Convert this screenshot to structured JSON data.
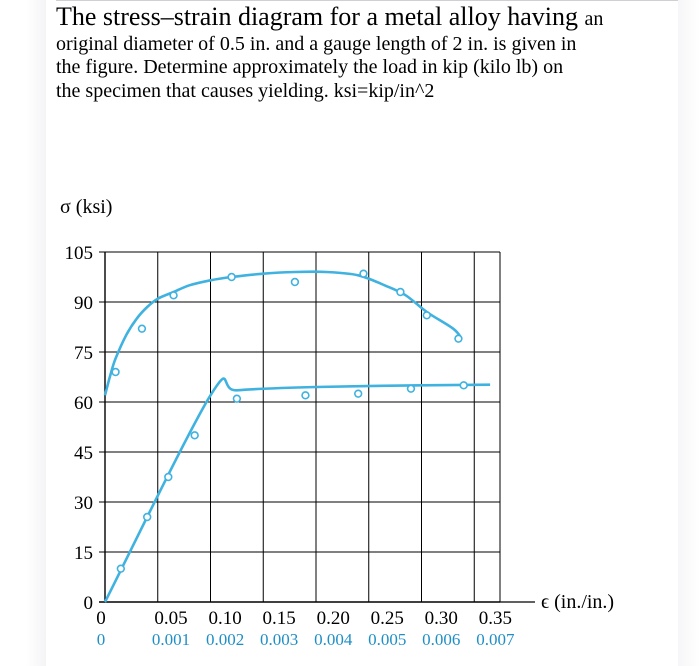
{
  "question": {
    "line1_main": "The stress–strain diagram for a metal alloy having",
    "line1_tail": "an",
    "line2": "original diameter of 0.5 in. and a gauge length of 2 in. is given in",
    "line3": "the figure. Determine approximately the load in kip (kilo lb) on",
    "line4": "the specimen that causes yielding. ksi=kip/in^2"
  },
  "chart_data": {
    "type": "line",
    "ylabel": "σ (ksi)",
    "xlabel": "ϵ (in./in.)",
    "ylim": [
      0,
      105
    ],
    "y_ticks": [
      0,
      15,
      30,
      45,
      60,
      75,
      90,
      105
    ],
    "y_tick_labels": [
      "0",
      "15",
      "30",
      "45",
      "60",
      "75",
      "90",
      "105"
    ],
    "x_axes": [
      {
        "name": "upper scale",
        "color": "#000000",
        "ticks": [
          0,
          0.05,
          0.1,
          0.15,
          0.2,
          0.25,
          0.3,
          0.35
        ],
        "tick_labels": [
          "0",
          "0.05",
          "0.10",
          "0.15",
          "0.20",
          "0.25",
          "0.30",
          "0.35"
        ]
      },
      {
        "name": "lower scale",
        "color": "#1e8fc6",
        "ticks": [
          0,
          0.001,
          0.002,
          0.003,
          0.004,
          0.005,
          0.006,
          0.007
        ],
        "tick_labels": [
          "0",
          "0.001",
          "0.002",
          "0.003",
          "0.004",
          "0.005",
          "0.006",
          "0.007"
        ]
      }
    ],
    "grid": true,
    "series": [
      {
        "axis": "upper scale",
        "curve": [
          [
            0,
            62
          ],
          [
            0.005,
            68
          ],
          [
            0.01,
            73
          ],
          [
            0.02,
            80
          ],
          [
            0.03,
            85
          ],
          [
            0.04,
            88.5
          ],
          [
            0.05,
            91
          ],
          [
            0.065,
            93
          ],
          [
            0.08,
            95
          ],
          [
            0.1,
            96.5
          ],
          [
            0.12,
            97.5
          ],
          [
            0.15,
            98.5
          ],
          [
            0.18,
            99
          ],
          [
            0.21,
            99
          ],
          [
            0.24,
            98
          ],
          [
            0.265,
            95
          ],
          [
            0.285,
            92
          ],
          [
            0.305,
            87
          ],
          [
            0.33,
            82
          ],
          [
            0.338,
            79
          ]
        ],
        "markers": [
          [
            0.01,
            69
          ],
          [
            0.035,
            82
          ],
          [
            0.065,
            92
          ],
          [
            0.12,
            97.5
          ],
          [
            0.18,
            96
          ],
          [
            0.245,
            98.5
          ],
          [
            0.28,
            93
          ],
          [
            0.305,
            86
          ],
          [
            0.335,
            79
          ]
        ]
      },
      {
        "axis": "lower scale",
        "curve": [
          [
            0,
            0
          ],
          [
            0.002,
            62
          ],
          [
            0.0025,
            63.5
          ],
          [
            0.004,
            64.5
          ],
          [
            0.006,
            65
          ],
          [
            0.0073,
            65.2
          ]
        ],
        "markers": [
          [
            0.0003,
            10
          ],
          [
            0.0008,
            25.5
          ],
          [
            0.0012,
            37.5
          ],
          [
            0.0017,
            50
          ],
          [
            0.0025,
            61
          ],
          [
            0.0038,
            62
          ],
          [
            0.0048,
            62.5
          ],
          [
            0.0058,
            64
          ],
          [
            0.0068,
            65
          ]
        ]
      }
    ]
  },
  "colors": {
    "curve": "#3fb2e0",
    "grid": "#000000",
    "lower_axis_text": "#1e8fc6"
  }
}
